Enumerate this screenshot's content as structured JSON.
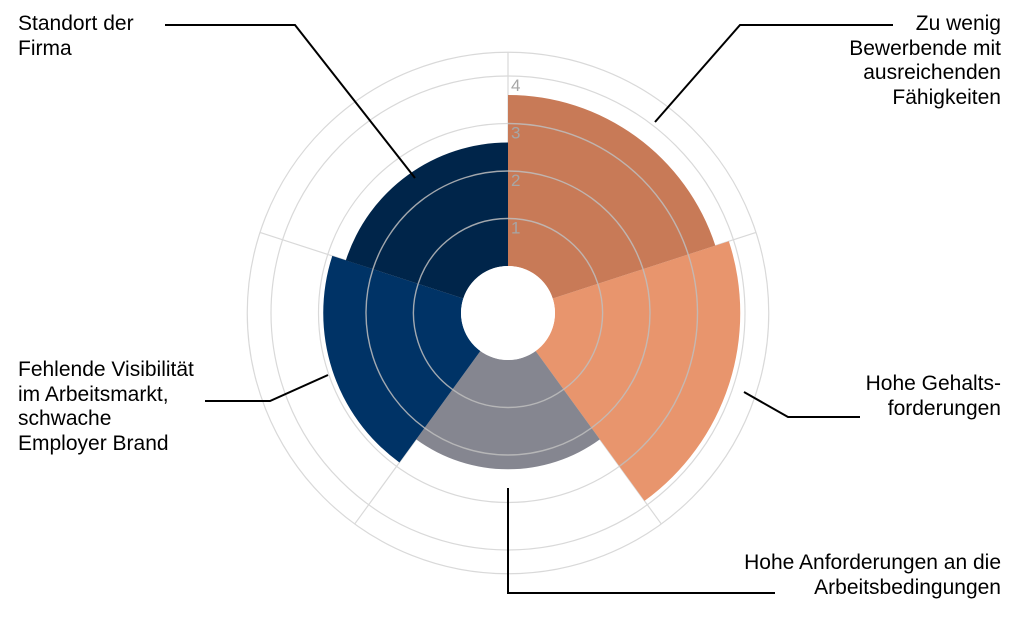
{
  "chart_data": {
    "type": "polar-area",
    "categories": [
      "Zu wenig Bewerbende mit ausreichenden Fähigkeiten",
      "Hohe Gehalts-forderungen",
      "Hohe Anforderungen an die Arbeitsbedingungen",
      "Fehlende Visibilität im Arbeitsmarkt, schwache Employer Brand",
      "Standort der Firma"
    ],
    "labels_display": [
      "Zu wenig\nBewerbende mit\nausreichenden\nFähigkeiten",
      "Hohe Gehalts-\nforderungen",
      "Hohe Anforderungen an die\nArbeitsbedingungen",
      "Fehlende Visibilität\nim Arbeitsmarkt,\nschwache\nEmployer Brand",
      "Standort der\nFirma"
    ],
    "values": [
      3.6,
      3.9,
      2.3,
      2.9,
      2.6
    ],
    "colors": [
      "#c87a57",
      "#e8956d",
      "#858690",
      "#003366",
      "#00254a"
    ],
    "radial_ticks": [
      "1",
      "2",
      "3",
      "4"
    ],
    "rlim": [
      0,
      4.5
    ],
    "grid": true,
    "legend": "none"
  }
}
